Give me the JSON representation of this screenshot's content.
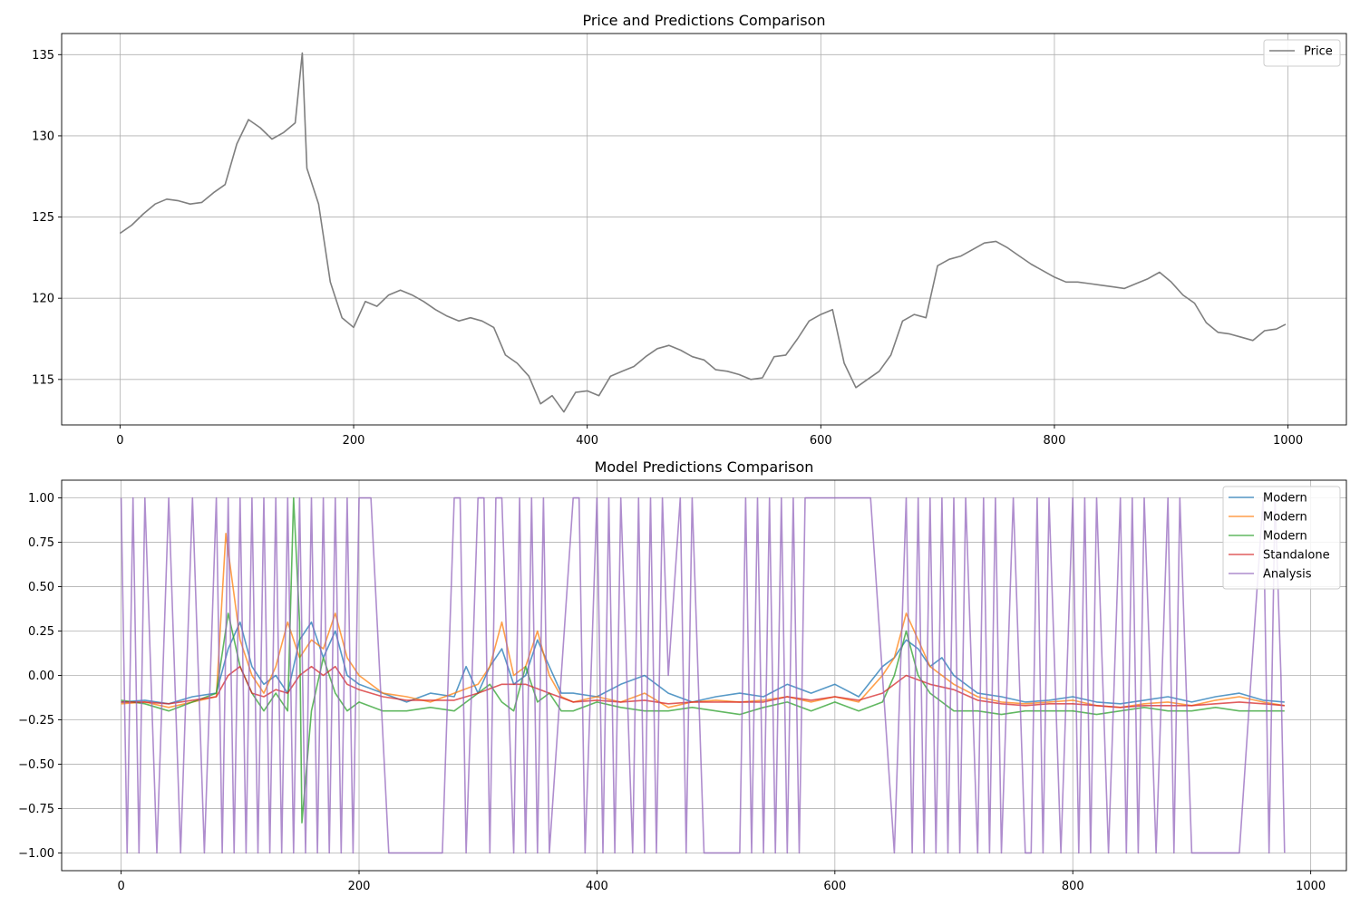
{
  "chart_data": [
    {
      "type": "line",
      "title": "Price and Predictions Comparison",
      "xlim": [
        -50,
        1050
      ],
      "ylim": [
        112.2,
        136.3
      ],
      "xticks": [
        0,
        200,
        400,
        600,
        800,
        1000
      ],
      "yticks": [
        115,
        120,
        125,
        130,
        135
      ],
      "grid": true,
      "legend_position": "top-right",
      "colors": {
        "price": "#7f7f7f"
      },
      "series": [
        {
          "name": "Price",
          "x": [
            0,
            10,
            20,
            30,
            40,
            50,
            60,
            70,
            80,
            90,
            100,
            110,
            120,
            130,
            140,
            150,
            156,
            160,
            170,
            180,
            190,
            200,
            210,
            220,
            230,
            240,
            250,
            260,
            270,
            280,
            290,
            300,
            310,
            320,
            330,
            340,
            350,
            360,
            370,
            380,
            390,
            400,
            410,
            420,
            430,
            440,
            450,
            460,
            470,
            480,
            490,
            500,
            510,
            520,
            530,
            540,
            550,
            560,
            570,
            580,
            590,
            600,
            610,
            620,
            630,
            640,
            650,
            660,
            670,
            680,
            690,
            700,
            710,
            720,
            730,
            740,
            750,
            760,
            770,
            780,
            790,
            800,
            810,
            820,
            830,
            840,
            850,
            860,
            870,
            880,
            890,
            900,
            910,
            920,
            930,
            940,
            950,
            960,
            970,
            980,
            990,
            998
          ],
          "values": [
            124.0,
            124.5,
            125.2,
            125.8,
            126.1,
            126.0,
            125.8,
            125.9,
            126.5,
            127.0,
            129.5,
            131.0,
            130.5,
            129.8,
            130.2,
            130.8,
            135.1,
            128.0,
            125.8,
            121.0,
            118.8,
            118.2,
            119.8,
            119.5,
            120.2,
            120.5,
            120.2,
            119.8,
            119.3,
            118.9,
            118.6,
            118.8,
            118.6,
            118.2,
            116.5,
            116.0,
            115.2,
            113.5,
            114.0,
            113.0,
            114.2,
            114.3,
            114.0,
            115.2,
            115.5,
            115.8,
            116.4,
            116.9,
            117.1,
            116.8,
            116.4,
            116.2,
            115.6,
            115.5,
            115.3,
            115.0,
            115.1,
            116.4,
            116.5,
            117.5,
            118.6,
            119.0,
            119.3,
            116.0,
            114.5,
            115.0,
            115.5,
            116.5,
            118.6,
            119.0,
            118.8,
            122.0,
            122.4,
            122.6,
            123.0,
            123.4,
            123.5,
            123.1,
            122.6,
            122.1,
            121.7,
            121.3,
            121.0,
            121.0,
            120.9,
            120.8,
            120.7,
            120.6,
            120.9,
            121.2,
            121.6,
            121.0,
            120.2,
            119.7,
            118.5,
            117.9,
            117.8,
            117.6,
            117.4,
            118.0,
            118.1,
            118.4
          ]
        }
      ]
    },
    {
      "type": "line",
      "title": "Model Predictions Comparison",
      "xlim": [
        -50,
        1030
      ],
      "ylim": [
        -1.1,
        1.1
      ],
      "xticks": [
        0,
        200,
        400,
        600,
        800,
        1000
      ],
      "yticks": [
        -1.0,
        -0.75,
        -0.5,
        -0.25,
        0.0,
        0.25,
        0.5,
        0.75,
        1.0
      ],
      "grid": true,
      "legend_position": "top-right",
      "series": [
        {
          "name": "Modern",
          "color": "#1f77b4",
          "x": [
            0,
            20,
            40,
            60,
            80,
            90,
            100,
            110,
            120,
            130,
            140,
            150,
            160,
            170,
            180,
            190,
            200,
            220,
            240,
            260,
            280,
            290,
            300,
            310,
            320,
            330,
            340,
            350,
            360,
            370,
            380,
            400,
            420,
            440,
            460,
            480,
            500,
            520,
            540,
            560,
            580,
            600,
            620,
            640,
            650,
            660,
            670,
            680,
            690,
            700,
            720,
            740,
            760,
            780,
            800,
            820,
            840,
            860,
            880,
            900,
            920,
            940,
            960,
            978
          ],
          "values": [
            -0.15,
            -0.14,
            -0.16,
            -0.12,
            -0.1,
            0.15,
            0.3,
            0.05,
            -0.05,
            0.0,
            -0.1,
            0.2,
            0.3,
            0.1,
            0.25,
            0.0,
            -0.05,
            -0.1,
            -0.15,
            -0.1,
            -0.12,
            0.05,
            -0.1,
            0.05,
            0.15,
            -0.05,
            0.0,
            0.2,
            0.05,
            -0.1,
            -0.1,
            -0.12,
            -0.05,
            0.0,
            -0.1,
            -0.15,
            -0.12,
            -0.1,
            -0.12,
            -0.05,
            -0.1,
            -0.05,
            -0.12,
            0.05,
            0.1,
            0.2,
            0.15,
            0.05,
            0.1,
            0.0,
            -0.1,
            -0.12,
            -0.15,
            -0.14,
            -0.12,
            -0.15,
            -0.16,
            -0.14,
            -0.12,
            -0.15,
            -0.12,
            -0.1,
            -0.14,
            -0.15
          ]
        },
        {
          "name": "Modern",
          "color": "#ff7f0e",
          "x": [
            0,
            20,
            40,
            60,
            80,
            88,
            100,
            110,
            120,
            130,
            140,
            150,
            160,
            170,
            180,
            190,
            200,
            220,
            240,
            260,
            280,
            300,
            310,
            320,
            330,
            340,
            350,
            360,
            370,
            380,
            400,
            420,
            440,
            460,
            480,
            500,
            520,
            540,
            560,
            580,
            600,
            620,
            640,
            650,
            660,
            670,
            680,
            690,
            700,
            720,
            740,
            760,
            780,
            800,
            820,
            840,
            860,
            880,
            900,
            920,
            940,
            960,
            978
          ],
          "values": [
            -0.16,
            -0.15,
            -0.18,
            -0.15,
            -0.12,
            0.8,
            0.2,
            0.0,
            -0.1,
            0.05,
            0.3,
            0.1,
            0.2,
            0.15,
            0.35,
            0.1,
            0.0,
            -0.1,
            -0.12,
            -0.15,
            -0.1,
            -0.05,
            0.05,
            0.3,
            0.0,
            0.05,
            0.25,
            0.0,
            -0.12,
            -0.15,
            -0.12,
            -0.15,
            -0.1,
            -0.18,
            -0.15,
            -0.14,
            -0.15,
            -0.14,
            -0.12,
            -0.15,
            -0.12,
            -0.15,
            0.0,
            0.1,
            0.35,
            0.2,
            0.05,
            0.0,
            -0.05,
            -0.12,
            -0.15,
            -0.16,
            -0.15,
            -0.14,
            -0.17,
            -0.18,
            -0.16,
            -0.15,
            -0.17,
            -0.14,
            -0.12,
            -0.15,
            -0.17
          ]
        },
        {
          "name": "Modern",
          "color": "#2ca02c",
          "x": [
            0,
            20,
            40,
            60,
            80,
            90,
            100,
            110,
            120,
            130,
            140,
            145,
            150,
            152,
            160,
            170,
            180,
            190,
            200,
            220,
            240,
            260,
            280,
            300,
            310,
            320,
            330,
            340,
            350,
            360,
            370,
            380,
            400,
            420,
            440,
            460,
            480,
            500,
            520,
            540,
            560,
            580,
            600,
            620,
            640,
            650,
            660,
            670,
            680,
            690,
            700,
            720,
            740,
            760,
            780,
            800,
            820,
            840,
            860,
            880,
            900,
            920,
            940,
            960,
            978
          ],
          "values": [
            -0.14,
            -0.16,
            -0.2,
            -0.15,
            -0.1,
            0.35,
            0.05,
            -0.1,
            -0.2,
            -0.1,
            -0.2,
            1.0,
            0.3,
            -0.83,
            -0.2,
            0.1,
            -0.1,
            -0.2,
            -0.15,
            -0.2,
            -0.2,
            -0.18,
            -0.2,
            -0.1,
            -0.05,
            -0.15,
            -0.2,
            0.05,
            -0.15,
            -0.1,
            -0.2,
            -0.2,
            -0.15,
            -0.18,
            -0.2,
            -0.2,
            -0.18,
            -0.2,
            -0.22,
            -0.18,
            -0.15,
            -0.2,
            -0.15,
            -0.2,
            -0.15,
            0.0,
            0.25,
            0.0,
            -0.1,
            -0.15,
            -0.2,
            -0.2,
            -0.22,
            -0.2,
            -0.2,
            -0.2,
            -0.22,
            -0.2,
            -0.18,
            -0.2,
            -0.2,
            -0.18,
            -0.2,
            -0.2,
            -0.2
          ]
        },
        {
          "name": "Standalone",
          "color": "#d62728",
          "x": [
            0,
            20,
            40,
            60,
            80,
            90,
            100,
            110,
            120,
            130,
            140,
            150,
            160,
            170,
            180,
            190,
            200,
            220,
            240,
            260,
            280,
            300,
            320,
            340,
            360,
            380,
            400,
            420,
            440,
            460,
            480,
            500,
            520,
            540,
            560,
            580,
            600,
            620,
            640,
            660,
            680,
            700,
            720,
            740,
            760,
            780,
            800,
            820,
            840,
            860,
            880,
            900,
            920,
            940,
            960,
            978
          ],
          "values": [
            -0.15,
            -0.15,
            -0.16,
            -0.14,
            -0.12,
            0.0,
            0.05,
            -0.1,
            -0.12,
            -0.08,
            -0.1,
            0.0,
            0.05,
            0.0,
            0.05,
            -0.05,
            -0.08,
            -0.12,
            -0.14,
            -0.14,
            -0.14,
            -0.1,
            -0.05,
            -0.05,
            -0.1,
            -0.15,
            -0.14,
            -0.15,
            -0.14,
            -0.16,
            -0.15,
            -0.15,
            -0.15,
            -0.15,
            -0.12,
            -0.14,
            -0.12,
            -0.14,
            -0.1,
            0.0,
            -0.05,
            -0.08,
            -0.14,
            -0.16,
            -0.17,
            -0.16,
            -0.16,
            -0.17,
            -0.18,
            -0.17,
            -0.17,
            -0.17,
            -0.16,
            -0.15,
            -0.16,
            -0.17
          ]
        },
        {
          "name": "Analysis",
          "color": "#9467bd",
          "x": [
            0,
            5,
            10,
            15,
            20,
            30,
            40,
            50,
            60,
            70,
            80,
            85,
            90,
            95,
            100,
            105,
            110,
            115,
            120,
            125,
            130,
            135,
            140,
            145,
            150,
            155,
            160,
            165,
            170,
            175,
            180,
            185,
            190,
            195,
            200,
            210,
            225,
            230,
            240,
            250,
            260,
            270,
            280,
            285,
            290,
            300,
            305,
            310,
            315,
            320,
            330,
            335,
            340,
            345,
            350,
            355,
            360,
            380,
            385,
            390,
            400,
            405,
            410,
            415,
            420,
            430,
            435,
            440,
            445,
            450,
            455,
            460,
            470,
            475,
            480,
            490,
            500,
            520,
            525,
            530,
            535,
            540,
            545,
            550,
            555,
            560,
            565,
            570,
            575,
            580,
            590,
            600,
            610,
            620,
            630,
            650,
            660,
            665,
            670,
            675,
            680,
            685,
            690,
            695,
            700,
            705,
            710,
            720,
            725,
            730,
            735,
            740,
            750,
            760,
            765,
            770,
            775,
            780,
            790,
            800,
            805,
            810,
            815,
            820,
            830,
            840,
            845,
            850,
            855,
            860,
            870,
            880,
            885,
            890,
            900,
            920,
            940,
            960,
            965,
            970,
            975,
            978
          ],
          "values": [
            1,
            -1,
            1,
            -1,
            1,
            -1,
            1,
            -1,
            1,
            -1,
            1,
            -1,
            1,
            -1,
            1,
            -1,
            1,
            -1,
            1,
            -1,
            1,
            -1,
            1,
            -1,
            1,
            -1,
            1,
            -1,
            1,
            -1,
            1,
            -1,
            1,
            -1,
            1,
            1,
            -1,
            -1,
            -1,
            -1,
            -1,
            -1,
            1,
            1,
            -1,
            1,
            1,
            -1,
            1,
            1,
            -1,
            1,
            -1,
            1,
            -1,
            1,
            -1,
            1,
            1,
            -1,
            1,
            -1,
            1,
            -1,
            1,
            -1,
            1,
            -1,
            1,
            -1,
            1,
            0,
            1,
            -1,
            1,
            -1,
            -1,
            -1,
            1,
            -1,
            1,
            -1,
            1,
            -1,
            1,
            -1,
            1,
            -1,
            1,
            1,
            1,
            1,
            1,
            1,
            1,
            -1,
            1,
            -1,
            1,
            -1,
            1,
            -1,
            1,
            -1,
            1,
            -1,
            1,
            -1,
            1,
            -1,
            1,
            -1,
            1,
            -1,
            -1,
            1,
            -1,
            1,
            -1,
            1,
            -1,
            1,
            -1,
            1,
            -1,
            1,
            -1,
            1,
            -1,
            1,
            -1,
            1,
            -1,
            1,
            -1,
            -1,
            -1,
            1,
            -1,
            1,
            0,
            -1
          ]
        }
      ]
    }
  ]
}
